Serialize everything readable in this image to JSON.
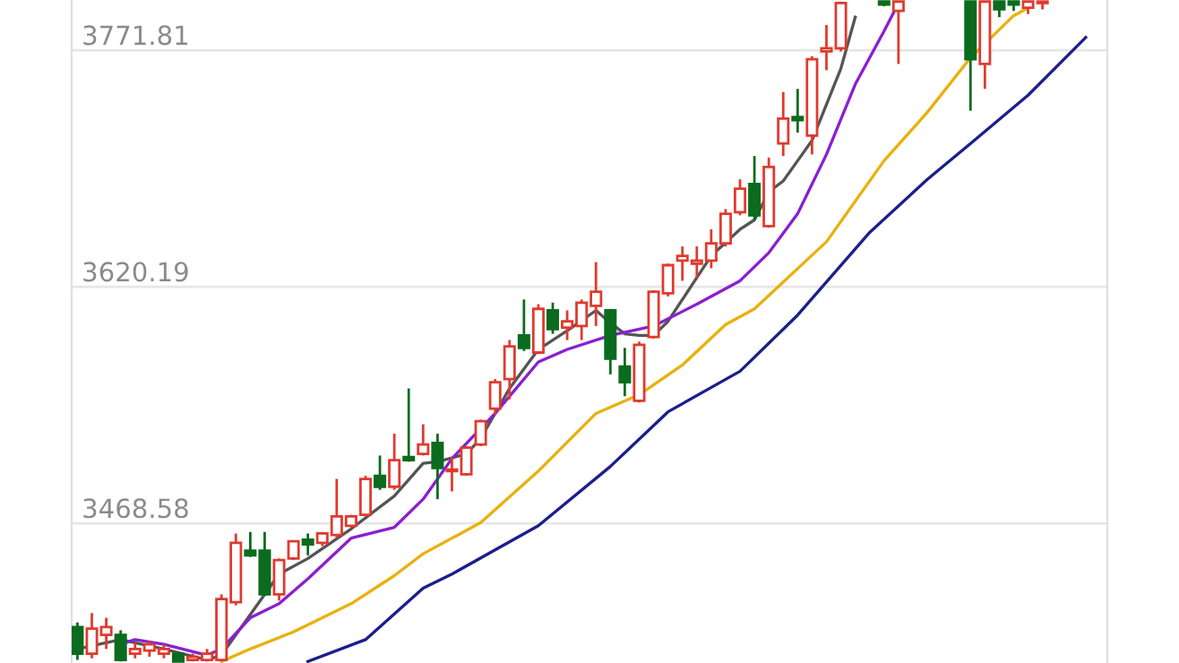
{
  "chart_data": {
    "type": "candlestick",
    "categories": [
      null,
      null,
      null,
      null,
      null,
      null,
      null,
      null,
      null,
      null,
      null,
      null,
      null,
      null,
      null,
      null,
      null,
      null,
      null,
      null,
      null,
      null,
      null,
      null,
      null,
      null,
      null,
      null,
      null,
      null,
      null,
      null,
      null,
      null,
      null,
      null,
      null,
      null,
      null,
      null,
      null,
      null,
      null,
      null,
      null,
      null,
      null,
      null,
      null,
      null,
      null,
      null,
      null,
      null,
      null,
      null,
      null,
      null,
      null,
      null,
      null,
      null,
      null,
      null,
      null,
      null,
      null,
      null,
      null,
      null,
      null
    ],
    "ohlc": [
      [
        3402,
        3405,
        3381,
        3385
      ],
      [
        3385,
        3411,
        3382,
        3401
      ],
      [
        3397,
        3408,
        3388,
        3402
      ],
      [
        3397,
        3400,
        3380,
        3381
      ],
      [
        3385,
        3392,
        3382,
        3388
      ],
      [
        3387,
        3393,
        3383,
        3391
      ],
      [
        3385,
        3391,
        3382,
        3388
      ],
      [
        3385,
        3386,
        3380,
        3380
      ],
      [
        3381,
        3385,
        3380,
        3383
      ],
      [
        3381,
        3388,
        3380,
        3385
      ],
      [
        3381,
        3423,
        3380,
        3420
      ],
      [
        3418,
        3462,
        3416,
        3456
      ],
      [
        3451,
        3463,
        3447,
        3448
      ],
      [
        3451,
        3463,
        3422,
        3423
      ],
      [
        3423,
        3446,
        3419,
        3445
      ],
      [
        3446,
        3457,
        3445,
        3457
      ],
      [
        3458,
        3462,
        3448,
        3455
      ],
      [
        3456,
        3463,
        3454,
        3462
      ],
      [
        3461,
        3497,
        3459,
        3473
      ],
      [
        3467,
        3474,
        3466,
        3473
      ],
      [
        3474,
        3499,
        3473,
        3497
      ],
      [
        3499,
        3512,
        3490,
        3492
      ],
      [
        3492,
        3526,
        3490,
        3509
      ],
      [
        3511,
        3555,
        3508,
        3509
      ],
      [
        3513,
        3532,
        3512,
        3519
      ],
      [
        3520,
        3526,
        3484,
        3504
      ],
      [
        3502,
        3511,
        3489,
        3503
      ],
      [
        3500,
        3518,
        3499,
        3517
      ],
      [
        3519,
        3535,
        3518,
        3534
      ],
      [
        3542,
        3561,
        3538,
        3559
      ],
      [
        3561,
        3586,
        3548,
        3582
      ],
      [
        3589,
        3612,
        3579,
        3581
      ],
      [
        3578,
        3609,
        3577,
        3606
      ],
      [
        3605,
        3610,
        3590,
        3593
      ],
      [
        3594,
        3605,
        3586,
        3598
      ],
      [
        3595,
        3612,
        3586,
        3610
      ],
      [
        3608,
        3636,
        3595,
        3617
      ],
      [
        3605,
        3606,
        3564,
        3574
      ],
      [
        3569,
        3581,
        3550,
        3559
      ],
      [
        3547,
        3585,
        3546,
        3583
      ],
      [
        3588,
        3618,
        3587,
        3617
      ],
      [
        3616,
        3635,
        3614,
        3634
      ],
      [
        3637,
        3646,
        3624,
        3640
      ],
      [
        3635,
        3646,
        3626,
        3637
      ],
      [
        3637,
        3657,
        3632,
        3648
      ],
      [
        3648,
        3670,
        3646,
        3667
      ],
      [
        3668,
        3689,
        3666,
        3683
      ],
      [
        3686,
        3704,
        3663,
        3666
      ],
      [
        3659,
        3703,
        3658,
        3697
      ],
      [
        3712,
        3745,
        3704,
        3728
      ],
      [
        3729,
        3747,
        3719,
        3727
      ],
      [
        3717,
        3768,
        3705,
        3766
      ],
      [
        3771,
        3788,
        3759,
        3773
      ],
      [
        3773,
        3803,
        3771,
        3802
      ],
      null,
      null,
      [
        3803,
        3803,
        3800,
        3801
      ],
      [
        3797,
        3803,
        3763,
        3803
      ],
      null,
      null,
      null,
      null,
      [
        3803,
        3803,
        3733,
        3766
      ],
      [
        3763,
        3803,
        3747,
        3803
      ],
      [
        3803,
        3803,
        3793,
        3798
      ],
      [
        3803,
        3803,
        3797,
        3801
      ],
      [
        3799,
        3803,
        3795,
        3803
      ],
      [
        3802,
        3803,
        3798,
        3803
      ],
      null,
      null,
      null
    ],
    "colors": [
      "#0b6b1e",
      "#e03a2f",
      "#e03a2f",
      "#0b6b1e",
      "#e03a2f",
      "#e03a2f",
      "#e03a2f",
      "#0b6b1e",
      "#e03a2f",
      "#e03a2f",
      "#e03a2f",
      "#e03a2f",
      "#0b6b1e",
      "#0b6b1e",
      "#e03a2f",
      "#e03a2f",
      "#0b6b1e",
      "#e03a2f",
      "#e03a2f",
      "#e03a2f",
      "#e03a2f",
      "#0b6b1e",
      "#e03a2f",
      "#0b6b1e",
      "#e03a2f",
      "#0b6b1e",
      "#e03a2f",
      "#e03a2f",
      "#e03a2f",
      "#e03a2f",
      "#e03a2f",
      "#0b6b1e",
      "#e03a2f",
      "#0b6b1e",
      "#e03a2f",
      "#e03a2f",
      "#e03a2f",
      "#0b6b1e",
      "#0b6b1e",
      "#e03a2f",
      "#e03a2f",
      "#e03a2f",
      "#e03a2f",
      "#e03a2f",
      "#e03a2f",
      "#e03a2f",
      "#e03a2f",
      "#0b6b1e",
      "#e03a2f",
      "#e03a2f",
      "#0b6b1e",
      "#e03a2f",
      "#e03a2f",
      "#e03a2f",
      null,
      null,
      "#0b6b1e",
      "#e03a2f",
      null,
      null,
      null,
      null,
      "#0b6b1e",
      "#e03a2f",
      "#0b6b1e",
      "#0b6b1e",
      "#e03a2f",
      "#e03a2f",
      null,
      null,
      null
    ],
    "series": [
      {
        "type": "line",
        "color": "#555555",
        "values": [
          3388,
          null,
          null,
          3394,
          null,
          null,
          3388,
          null,
          null,
          3381,
          3384,
          null,
          3410,
          null,
          3436,
          null,
          3446,
          null,
          null,
          3465,
          null,
          null,
          3486,
          null,
          3507,
          3508,
          null,
          3513,
          3523,
          null,
          3555,
          null,
          3580,
          null,
          3592,
          null,
          3605,
          3597,
          3590,
          3589,
          3589,
          3598,
          null,
          3626,
          3640,
          null,
          3657,
          3663,
          3681,
          3688,
          3701,
          3714,
          3737,
          3760,
          3793,
          null,
          null,
          null,
          null,
          null,
          null,
          null,
          null,
          null,
          null,
          null,
          null,
          null,
          null,
          null,
          null
        ]
      },
      {
        "type": "line",
        "color": "#8a1fd0",
        "values": [
          null,
          null,
          null,
          3391,
          3394,
          null,
          3391,
          null,
          null,
          3384,
          3388,
          null,
          3408,
          null,
          3417,
          null,
          3433,
          null,
          null,
          3459,
          null,
          null,
          3466,
          null,
          3484,
          null,
          3510,
          null,
          null,
          3539,
          null,
          null,
          3572,
          null,
          3580,
          null,
          null,
          3589,
          null,
          null,
          3595,
          null,
          null,
          3609,
          null,
          null,
          3624,
          null,
          3642,
          null,
          3667,
          null,
          3705,
          null,
          3750,
          null,
          3784,
          3802,
          null,
          null,
          null,
          null,
          null,
          null,
          null,
          null,
          null,
          null,
          null,
          null,
          null
        ]
      },
      {
        "type": "line",
        "color": "#e8b10e",
        "values": [
          null,
          null,
          null,
          null,
          null,
          null,
          null,
          null,
          null,
          null,
          3380,
          null,
          3388,
          null,
          null,
          3399,
          null,
          null,
          null,
          3417,
          null,
          null,
          3435,
          null,
          3449,
          null,
          null,
          null,
          3469,
          null,
          null,
          null,
          3502,
          null,
          null,
          null,
          3539,
          null,
          null,
          3551,
          null,
          null,
          3570,
          null,
          null,
          3596,
          null,
          3606,
          null,
          null,
          null,
          null,
          3649,
          null,
          null,
          null,
          3701,
          null,
          null,
          3732,
          null,
          null,
          3767,
          null,
          null,
          3794,
          3799,
          null,
          null,
          null,
          null
        ]
      },
      {
        "type": "line",
        "color": "#1c1f8a",
        "values": [
          null,
          null,
          null,
          null,
          null,
          null,
          null,
          null,
          null,
          null,
          null,
          null,
          null,
          null,
          null,
          null,
          3380,
          null,
          null,
          null,
          3394,
          null,
          null,
          null,
          3427,
          null,
          3436,
          null,
          null,
          null,
          null,
          null,
          3467,
          null,
          null,
          null,
          null,
          3505,
          null,
          null,
          null,
          3540,
          null,
          null,
          null,
          null,
          3566,
          null,
          null,
          null,
          3602,
          null,
          null,
          null,
          null,
          3655,
          null,
          null,
          null,
          3689,
          null,
          null,
          3712,
          null,
          null,
          null,
          3743,
          null,
          null,
          null,
          3780
        ]
      }
    ],
    "ylim": [
      3379,
      3804
    ],
    "yticks": [
      3468.58,
      3620.19,
      3771.81
    ],
    "grid": "y",
    "tick_labels": "y"
  }
}
